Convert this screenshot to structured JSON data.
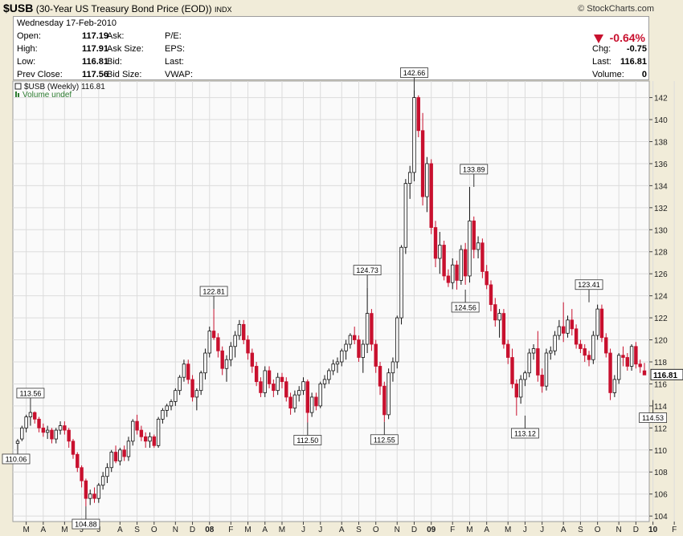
{
  "header": {
    "symbol": "$USB",
    "name": "(30-Year US Treasury Bond Price (EOD))",
    "exchange": "INDX",
    "credit": "© StockCharts.com"
  },
  "quote": {
    "date": "Wednesday  17-Feb-2010",
    "open_label": "Open:",
    "open": "117.19",
    "high_label": "High:",
    "high": "117.91",
    "low_label": "Low:",
    "low": "116.81",
    "prev_label": "Prev Close:",
    "prev": "117.56",
    "ask_label": "Ask:",
    "ask_size_label": "Ask Size:",
    "bid_label": "Bid:",
    "bid_size_label": "Bid Size:",
    "pe_label": "P/E:",
    "eps_label": "EPS:",
    "last_label": "Last:",
    "vwap_label": "VWAP:",
    "chg_pct": "-0.64%",
    "chg_label": "Chg:",
    "chg": "-0.75",
    "last2_label": "Last:",
    "last2": "116.81",
    "volume_label": "Volume:",
    "volume": "0"
  },
  "legend": {
    "series": "$USB (Weekly) 116.81",
    "volume": "Volume undef",
    "last_price": "116.81"
  },
  "colors": {
    "up": "#ffffff",
    "down": "#c8102e",
    "outline": "#111111",
    "grid": "#dcdcdc",
    "volume_text": "#2e7d32"
  },
  "chart_data": {
    "type": "candlestick",
    "title": "$USB (Weekly)",
    "ylim": [
      103.5,
      143.5
    ],
    "y_ticks": [
      104,
      106,
      108,
      110,
      112,
      114,
      116,
      118,
      120,
      122,
      124,
      126,
      128,
      130,
      132,
      134,
      136,
      138,
      140,
      142
    ],
    "x_ticks": [
      {
        "label": "M",
        "i": 2
      },
      {
        "label": "A",
        "i": 6
      },
      {
        "label": "M",
        "i": 11
      },
      {
        "label": "J",
        "i": 15
      },
      {
        "label": "J",
        "i": 19
      },
      {
        "label": "A",
        "i": 24
      },
      {
        "label": "S",
        "i": 28
      },
      {
        "label": "O",
        "i": 32
      },
      {
        "label": "N",
        "i": 37
      },
      {
        "label": "D",
        "i": 41
      },
      {
        "label": "08",
        "i": 45,
        "bold": true
      },
      {
        "label": "F",
        "i": 50
      },
      {
        "label": "M",
        "i": 54
      },
      {
        "label": "A",
        "i": 58
      },
      {
        "label": "M",
        "i": 62
      },
      {
        "label": "J",
        "i": 67
      },
      {
        "label": "J",
        "i": 71
      },
      {
        "label": "A",
        "i": 76
      },
      {
        "label": "S",
        "i": 80
      },
      {
        "label": "O",
        "i": 84
      },
      {
        "label": "N",
        "i": 89
      },
      {
        "label": "D",
        "i": 93
      },
      {
        "label": "09",
        "i": 97,
        "bold": true
      },
      {
        "label": "F",
        "i": 102
      },
      {
        "label": "M",
        "i": 106
      },
      {
        "label": "A",
        "i": 110
      },
      {
        "label": "M",
        "i": 115
      },
      {
        "label": "J",
        "i": 119
      },
      {
        "label": "J",
        "i": 123
      },
      {
        "label": "A",
        "i": 128
      },
      {
        "label": "S",
        "i": 132
      },
      {
        "label": "O",
        "i": 136
      },
      {
        "label": "N",
        "i": 141
      },
      {
        "label": "D",
        "i": 145
      },
      {
        "label": "10",
        "i": 149,
        "bold": true
      },
      {
        "label": "F",
        "i": 154
      }
    ],
    "annotations": [
      {
        "label": "110.06",
        "i": 0,
        "value": 110.06,
        "pos": "left"
      },
      {
        "label": "113.56",
        "i": 3,
        "value": 113.56,
        "pos": "above"
      },
      {
        "label": "104.88",
        "i": 16,
        "value": 104.88,
        "pos": "below"
      },
      {
        "label": "122.81",
        "i": 46,
        "value": 122.81,
        "pos": "above"
      },
      {
        "label": "112.50",
        "i": 68,
        "value": 112.5,
        "pos": "below"
      },
      {
        "label": "124.73",
        "i": 82,
        "value": 124.73,
        "pos": "above"
      },
      {
        "label": "112.55",
        "i": 86,
        "value": 112.55,
        "pos": "below"
      },
      {
        "label": "142.66",
        "i": 93,
        "value": 142.66,
        "pos": "above"
      },
      {
        "label": "124.56",
        "i": 105,
        "value": 124.56,
        "pos": "below"
      },
      {
        "label": "133.89",
        "i": 107,
        "value": 133.89,
        "pos": "above"
      },
      {
        "label": "113.12",
        "i": 119,
        "value": 113.12,
        "pos": "below"
      },
      {
        "label": "123.41",
        "i": 134,
        "value": 123.41,
        "pos": "above"
      },
      {
        "label": "114.53",
        "i": 149,
        "value": 114.53,
        "pos": "below"
      }
    ],
    "candles": [
      [
        110.6,
        111.0,
        110.06,
        110.8
      ],
      [
        111.0,
        112.2,
        110.8,
        112.0
      ],
      [
        112.0,
        113.2,
        111.6,
        113.0
      ],
      [
        113.0,
        113.56,
        112.2,
        113.4
      ],
      [
        113.4,
        113.5,
        112.4,
        112.8
      ],
      [
        112.8,
        113.0,
        111.6,
        112.0
      ],
      [
        112.0,
        112.4,
        111.2,
        111.6
      ],
      [
        111.6,
        112.2,
        111.0,
        111.8
      ],
      [
        111.8,
        112.0,
        110.6,
        111.0
      ],
      [
        111.0,
        112.0,
        110.6,
        111.8
      ],
      [
        111.8,
        112.6,
        111.4,
        112.2
      ],
      [
        112.2,
        112.6,
        111.4,
        111.8
      ],
      [
        111.8,
        112.0,
        110.2,
        110.8
      ],
      [
        110.8,
        111.0,
        109.2,
        109.6
      ],
      [
        109.6,
        109.8,
        108.0,
        108.4
      ],
      [
        108.4,
        108.6,
        106.6,
        107.2
      ],
      [
        107.2,
        107.4,
        104.88,
        105.6
      ],
      [
        105.6,
        106.4,
        105.0,
        106.0
      ],
      [
        106.0,
        106.6,
        105.2,
        105.6
      ],
      [
        105.6,
        107.0,
        105.2,
        106.8
      ],
      [
        106.8,
        108.0,
        106.4,
        107.6
      ],
      [
        107.6,
        108.8,
        107.0,
        108.4
      ],
      [
        108.4,
        110.0,
        108.0,
        109.8
      ],
      [
        109.8,
        110.4,
        108.8,
        109.0
      ],
      [
        109.0,
        110.2,
        108.6,
        110.0
      ],
      [
        110.0,
        110.4,
        109.0,
        109.4
      ],
      [
        109.4,
        111.2,
        109.0,
        110.8
      ],
      [
        110.8,
        112.8,
        110.4,
        112.6
      ],
      [
        112.6,
        113.2,
        111.4,
        111.8
      ],
      [
        111.8,
        112.2,
        110.8,
        111.2
      ],
      [
        111.2,
        111.6,
        110.2,
        110.8
      ],
      [
        110.8,
        111.6,
        110.2,
        111.2
      ],
      [
        111.2,
        111.4,
        110.2,
        110.4
      ],
      [
        110.4,
        113.0,
        110.2,
        112.8
      ],
      [
        112.8,
        113.8,
        112.4,
        113.6
      ],
      [
        113.6,
        114.2,
        113.0,
        114.0
      ],
      [
        114.0,
        114.6,
        113.6,
        114.4
      ],
      [
        114.4,
        115.6,
        114.0,
        115.4
      ],
      [
        115.4,
        116.8,
        115.0,
        116.6
      ],
      [
        116.6,
        118.2,
        116.2,
        117.8
      ],
      [
        117.8,
        118.2,
        116.0,
        116.4
      ],
      [
        116.4,
        116.8,
        114.4,
        114.8
      ],
      [
        114.8,
        115.6,
        113.6,
        115.4
      ],
      [
        115.4,
        117.2,
        115.0,
        117.0
      ],
      [
        117.0,
        119.2,
        116.4,
        118.8
      ],
      [
        118.8,
        121.2,
        118.4,
        120.8
      ],
      [
        120.8,
        122.81,
        120.0,
        120.2
      ],
      [
        120.2,
        120.6,
        118.4,
        119.0
      ],
      [
        119.0,
        119.4,
        116.8,
        117.4
      ],
      [
        117.4,
        118.6,
        116.2,
        118.2
      ],
      [
        118.2,
        119.8,
        117.6,
        119.4
      ],
      [
        119.4,
        120.8,
        118.4,
        120.4
      ],
      [
        120.4,
        121.8,
        120.0,
        121.4
      ],
      [
        121.4,
        121.8,
        119.6,
        120.0
      ],
      [
        120.0,
        120.4,
        118.2,
        118.8
      ],
      [
        118.8,
        119.2,
        117.0,
        117.6
      ],
      [
        117.6,
        118.0,
        115.8,
        116.2
      ],
      [
        116.2,
        116.6,
        114.8,
        115.2
      ],
      [
        115.2,
        117.6,
        114.8,
        117.2
      ],
      [
        117.2,
        117.6,
        115.6,
        116.0
      ],
      [
        116.0,
        116.4,
        114.8,
        115.4
      ],
      [
        115.4,
        117.0,
        115.0,
        116.6
      ],
      [
        116.6,
        117.0,
        115.6,
        116.2
      ],
      [
        116.2,
        116.6,
        114.4,
        114.8
      ],
      [
        114.8,
        115.2,
        113.2,
        113.8
      ],
      [
        113.8,
        115.4,
        113.4,
        115.0
      ],
      [
        115.0,
        115.8,
        114.4,
        115.4
      ],
      [
        115.4,
        116.6,
        115.0,
        116.2
      ],
      [
        116.2,
        116.4,
        112.5,
        113.4
      ],
      [
        113.4,
        115.2,
        113.0,
        114.8
      ],
      [
        114.8,
        115.2,
        113.6,
        114.0
      ],
      [
        114.0,
        116.2,
        113.8,
        116.0
      ],
      [
        116.0,
        116.8,
        115.6,
        116.4
      ],
      [
        116.4,
        117.4,
        116.0,
        117.2
      ],
      [
        117.2,
        118.2,
        116.8,
        117.8
      ],
      [
        117.8,
        118.4,
        117.0,
        118.0
      ],
      [
        118.0,
        119.2,
        117.6,
        119.0
      ],
      [
        119.0,
        120.0,
        118.2,
        119.6
      ],
      [
        119.6,
        120.6,
        119.2,
        120.4
      ],
      [
        120.4,
        121.2,
        119.6,
        120.0
      ],
      [
        120.0,
        120.4,
        118.0,
        118.4
      ],
      [
        118.4,
        120.0,
        117.0,
        119.6
      ],
      [
        119.6,
        124.73,
        118.8,
        122.4
      ],
      [
        122.4,
        122.8,
        119.0,
        119.6
      ],
      [
        119.6,
        120.0,
        117.0,
        117.6
      ],
      [
        117.6,
        118.0,
        115.0,
        115.8
      ],
      [
        115.8,
        116.2,
        112.55,
        113.2
      ],
      [
        113.2,
        117.4,
        112.8,
        117.0
      ],
      [
        117.0,
        118.4,
        116.2,
        118.0
      ],
      [
        118.0,
        122.2,
        117.4,
        122.0
      ],
      [
        122.0,
        128.6,
        121.4,
        128.4
      ],
      [
        128.4,
        134.6,
        127.8,
        134.2
      ],
      [
        134.2,
        135.8,
        132.8,
        135.2
      ],
      [
        135.2,
        142.66,
        134.4,
        142.0
      ],
      [
        142.0,
        142.2,
        138.4,
        139.0
      ],
      [
        139.0,
        140.6,
        132.2,
        133.0
      ],
      [
        133.0,
        136.6,
        131.6,
        136.0
      ],
      [
        136.0,
        136.4,
        129.6,
        130.2
      ],
      [
        130.2,
        130.8,
        126.6,
        127.4
      ],
      [
        127.4,
        129.8,
        126.0,
        128.6
      ],
      [
        128.6,
        129.0,
        125.4,
        125.8
      ],
      [
        125.8,
        126.4,
        124.8,
        125.2
      ],
      [
        125.2,
        127.4,
        124.6,
        126.8
      ],
      [
        126.8,
        127.2,
        124.56,
        125.4
      ],
      [
        125.4,
        128.6,
        125.0,
        128.2
      ],
      [
        128.2,
        128.8,
        125.0,
        125.8
      ],
      [
        125.8,
        133.89,
        125.2,
        130.8
      ],
      [
        130.8,
        131.2,
        127.4,
        128.2
      ],
      [
        128.2,
        129.4,
        127.4,
        128.8
      ],
      [
        128.8,
        129.2,
        125.6,
        126.2
      ],
      [
        126.2,
        126.8,
        124.6,
        125.0
      ],
      [
        125.0,
        125.4,
        122.6,
        123.2
      ],
      [
        123.2,
        123.8,
        121.2,
        121.8
      ],
      [
        121.8,
        122.8,
        120.2,
        122.4
      ],
      [
        122.4,
        122.8,
        119.2,
        119.6
      ],
      [
        119.6,
        120.0,
        117.8,
        118.4
      ],
      [
        118.4,
        119.2,
        115.6,
        116.0
      ],
      [
        116.0,
        116.4,
        113.12,
        114.8
      ],
      [
        114.8,
        116.8,
        114.2,
        116.4
      ],
      [
        116.4,
        117.2,
        115.8,
        117.0
      ],
      [
        117.0,
        119.2,
        116.6,
        118.8
      ],
      [
        118.8,
        119.6,
        118.2,
        119.2
      ],
      [
        119.2,
        120.8,
        116.2,
        116.8
      ],
      [
        116.8,
        117.4,
        115.2,
        115.8
      ],
      [
        115.8,
        119.2,
        115.4,
        118.8
      ],
      [
        118.8,
        119.4,
        118.2,
        119.0
      ],
      [
        119.0,
        120.8,
        118.6,
        120.4
      ],
      [
        120.4,
        121.8,
        120.0,
        121.2
      ],
      [
        121.2,
        123.41,
        119.8,
        120.6
      ],
      [
        120.6,
        122.2,
        120.2,
        121.8
      ],
      [
        121.8,
        122.8,
        120.4,
        121.0
      ],
      [
        121.0,
        121.4,
        119.2,
        119.6
      ],
      [
        119.6,
        120.0,
        118.8,
        119.2
      ],
      [
        119.2,
        119.6,
        118.0,
        118.6
      ],
      [
        118.6,
        119.0,
        117.6,
        118.2
      ],
      [
        118.2,
        120.8,
        117.8,
        120.4
      ],
      [
        120.4,
        123.2,
        120.0,
        122.8
      ],
      [
        122.8,
        123.2,
        119.8,
        120.2
      ],
      [
        120.2,
        120.6,
        118.4,
        118.8
      ],
      [
        118.8,
        119.2,
        114.53,
        115.2
      ],
      [
        115.2,
        116.8,
        114.8,
        116.4
      ],
      [
        116.4,
        118.8,
        116.0,
        118.6
      ],
      [
        118.6,
        119.4,
        117.6,
        118.4
      ],
      [
        118.4,
        118.8,
        117.2,
        117.6
      ],
      [
        117.6,
        119.6,
        117.2,
        119.4
      ],
      [
        119.4,
        119.8,
        117.4,
        117.8
      ],
      [
        117.8,
        118.2,
        117.0,
        117.56
      ],
      [
        117.19,
        117.91,
        116.81,
        116.81
      ]
    ]
  }
}
